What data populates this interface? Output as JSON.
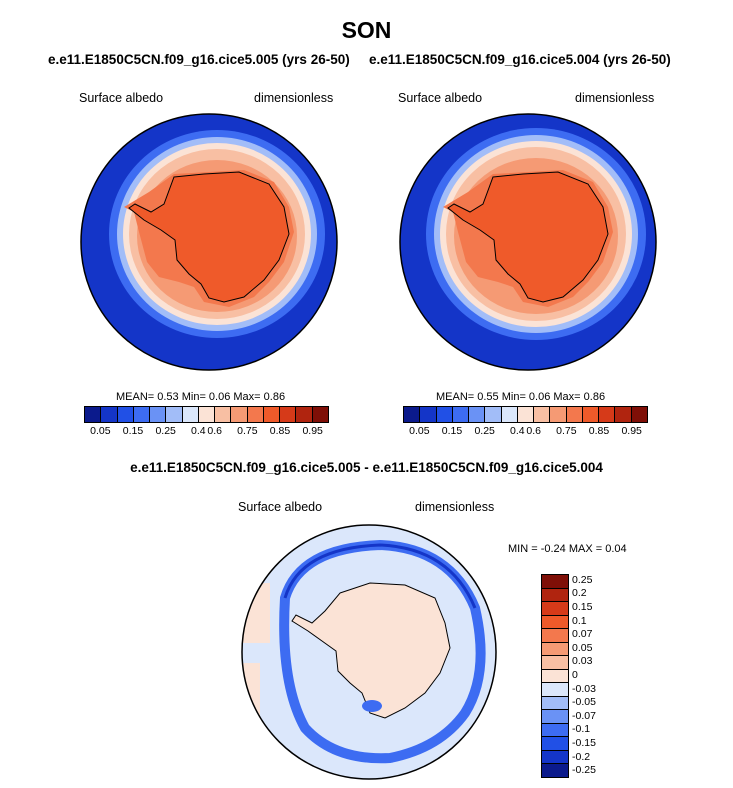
{
  "title": "SON",
  "panel_left": {
    "subtitle": "e.e11.E1850C5CN.f09_g16.cice5.005 (yrs 26-50)",
    "variable": "Surface albedo",
    "units": "dimensionless",
    "stats": "MEAN=   0.53  Min=   0.06  Max=   0.86"
  },
  "panel_right": {
    "subtitle": "e.e11.E1850C5CN.f09_g16.cice5.004 (yrs 26-50)",
    "variable": "Surface albedo",
    "units": "dimensionless",
    "stats": "MEAN=   0.55  Min=   0.06  Max=   0.86"
  },
  "diff_panel": {
    "subtitle": "e.e11.E1850C5CN.f09_g16.cice5.005 - e.e11.E1850C5CN.f09_g16.cice5.004",
    "variable": "Surface albedo",
    "units": "dimensionless",
    "minmax": "MIN =  -0.24 MAX =   0.04"
  },
  "colorbar_albedo": {
    "colors": [
      "#0b1a8c",
      "#1435c8",
      "#2150e6",
      "#3d6cf2",
      "#6a92f5",
      "#a2bdf8",
      "#dbe7fb",
      "#fbe3d6",
      "#f8bfa3",
      "#f59a74",
      "#f3784d",
      "#ef5a2a",
      "#d63a19",
      "#b0240f",
      "#7f0f07"
    ],
    "tick_labels": [
      "0.05",
      "0.15",
      "0.25",
      "0.4",
      "0.6",
      "0.75",
      "0.85",
      "0.95"
    ]
  },
  "colorbar_diff": {
    "colors": [
      "#7f0f07",
      "#b0240f",
      "#d63a19",
      "#ef5a2a",
      "#f3784d",
      "#f59a74",
      "#f8bfa3",
      "#fbe3d6",
      "#dbe7fb",
      "#a2bdf8",
      "#6a92f5",
      "#3d6cf2",
      "#2150e6",
      "#1435c8",
      "#0b1a8c"
    ],
    "tick_labels": [
      "0.25",
      "0.2",
      "0.15",
      "0.1",
      "0.07",
      "0.05",
      "0.03",
      "0",
      "-0.03",
      "-0.05",
      "-0.07",
      "-0.1",
      "-0.15",
      "-0.2",
      "-0.25"
    ]
  }
}
